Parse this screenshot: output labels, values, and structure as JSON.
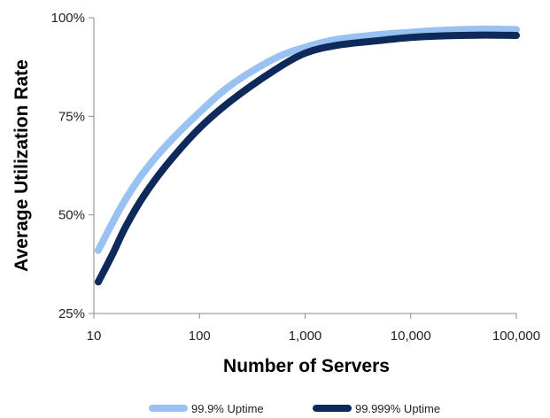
{
  "chart_data": {
    "type": "line",
    "xscale": "log",
    "xlabel": "Number of Servers",
    "ylabel": "Average Utilization Rate",
    "xlim": [
      10,
      100000
    ],
    "ylim": [
      25,
      100
    ],
    "x_ticks": [
      {
        "value": 10,
        "label": "10"
      },
      {
        "value": 100,
        "label": "100"
      },
      {
        "value": 1000,
        "label": "1,000"
      },
      {
        "value": 10000,
        "label": "10,000"
      },
      {
        "value": 100000,
        "label": "100,000"
      }
    ],
    "y_ticks": [
      {
        "value": 25,
        "label": "25%"
      },
      {
        "value": 50,
        "label": "50%"
      },
      {
        "value": 75,
        "label": "75%"
      },
      {
        "value": 100,
        "label": "100%"
      }
    ],
    "grid": false,
    "legend_position": "bottom",
    "series": [
      {
        "name": "99.9% Uptime",
        "color": "#99c2f2",
        "x": [
          11,
          15,
          20,
          30,
          50,
          100,
          200,
          500,
          1000,
          2000,
          5000,
          10000,
          20000,
          50000,
          100000
        ],
        "y": [
          41,
          48,
          54,
          61,
          68,
          76,
          83,
          89.5,
          92.5,
          94.5,
          95.7,
          96.3,
          96.8,
          97.1,
          97
        ]
      },
      {
        "name": "99.999% Uptime",
        "color": "#0d2a5a",
        "x": [
          11,
          15,
          20,
          30,
          50,
          100,
          200,
          500,
          1000,
          2000,
          5000,
          10000,
          20000,
          50000,
          100000
        ],
        "y": [
          33,
          40,
          47,
          55,
          63,
          72,
          79,
          86.5,
          91,
          93,
          94.2,
          95,
          95.4,
          95.6,
          95.5
        ]
      }
    ]
  }
}
